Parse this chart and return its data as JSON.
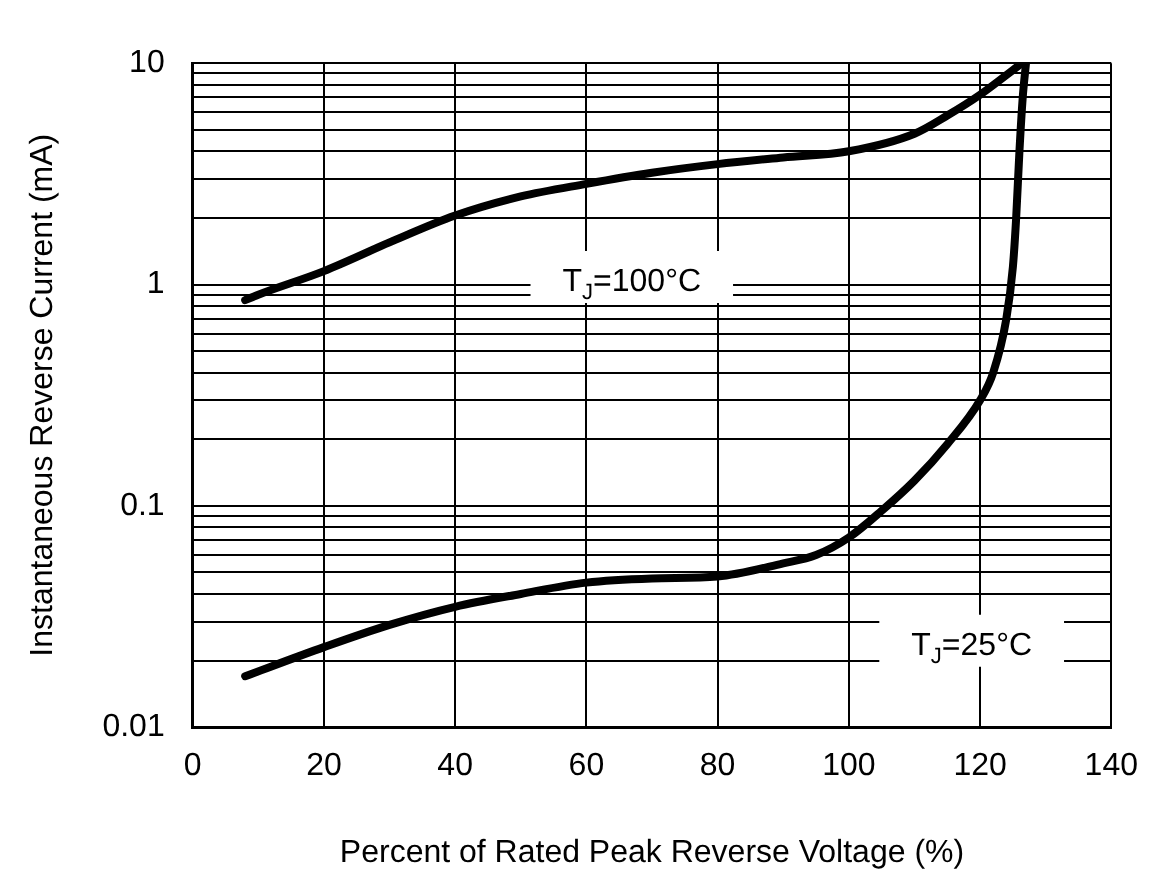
{
  "chart_data": {
    "type": "line",
    "xlabel": "Percent of Rated Peak Reverse Voltage (%)",
    "ylabel": "Instantaneous Reverse Current (mA)",
    "log": "y",
    "grid": true,
    "marker": "none",
    "line_style": "solid",
    "xlim": [
      0,
      140
    ],
    "xticks": [
      0,
      20,
      40,
      60,
      80,
      100,
      120,
      140
    ],
    "ylim": [
      0.01,
      10
    ],
    "yticks": [
      0.01,
      {
        "value": 0.02,
        "label": null
      },
      {
        "value": 0.03,
        "label": null
      },
      {
        "value": 0.04,
        "label": null
      },
      {
        "value": 0.05,
        "label": null
      },
      {
        "value": 0.06,
        "label": null
      },
      {
        "value": 0.07,
        "label": null
      },
      {
        "value": 0.08,
        "label": null
      },
      {
        "value": 0.09,
        "label": null
      },
      0.1,
      {
        "value": 0.2,
        "label": null
      },
      {
        "value": 0.3,
        "label": null
      },
      {
        "value": 0.4,
        "label": null
      },
      {
        "value": 0.5,
        "label": null
      },
      {
        "value": 0.6,
        "label": null
      },
      {
        "value": 0.7,
        "label": null
      },
      {
        "value": 0.8,
        "label": null
      },
      {
        "value": 0.9,
        "label": null
      },
      1,
      {
        "value": 2,
        "label": null
      },
      {
        "value": 3,
        "label": null
      },
      {
        "value": 4,
        "label": null
      },
      {
        "value": 5,
        "label": null
      },
      {
        "value": 6,
        "label": null
      },
      {
        "value": 7,
        "label": null
      },
      {
        "value": 8,
        "label": null
      },
      {
        "value": 9,
        "label": null
      },
      10
    ],
    "series": [
      {
        "color": "#000000",
        "x": [
          8,
          10,
          20,
          30,
          40,
          50,
          60,
          70,
          80,
          90,
          100,
          110,
          115,
          120,
          126
        ],
        "values": [
          0.85,
          0.9,
          1.15,
          1.55,
          2.05,
          2.5,
          2.85,
          3.2,
          3.5,
          3.75,
          4.0,
          4.8,
          5.8,
          7.2,
          9.8
        ]
      },
      {
        "color": "#000000",
        "x": [
          8,
          20,
          30,
          40,
          50,
          60,
          70,
          80,
          90,
          95,
          100,
          105,
          110,
          115,
          120,
          122,
          124,
          125,
          125.5,
          126,
          126.5,
          127
        ],
        "values": [
          0.017,
          0.023,
          0.029,
          0.035,
          0.04,
          0.045,
          0.047,
          0.048,
          0.055,
          0.06,
          0.072,
          0.095,
          0.13,
          0.19,
          0.3,
          0.4,
          0.7,
          1.2,
          2,
          4,
          7,
          10
        ]
      }
    ],
    "annotations": [
      "T$_{J}$=100°C",
      "T$_{J}$=25°C"
    ]
  }
}
